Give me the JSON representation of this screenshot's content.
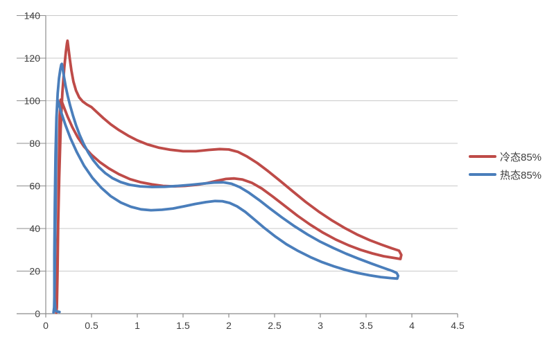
{
  "chart_data": {
    "type": "line",
    "title": "",
    "xlabel": "",
    "ylabel": "",
    "grid": "horizontal",
    "legend_position": "right",
    "x_axis": {
      "min": 0,
      "max": 4.5,
      "tick_step": 0.5,
      "tick_labels": [
        "0",
        "0.5",
        "1",
        "1.5",
        "2",
        "2.5",
        "3",
        "3.5",
        "4",
        "4.5"
      ]
    },
    "y_axis": {
      "min": 0,
      "max": 140,
      "tick_step": 20,
      "tick_labels": [
        "0",
        "20",
        "40",
        "60",
        "80",
        "100",
        "120",
        "140"
      ]
    },
    "style": {
      "background": "#FFFFFF",
      "gridline_color": "#C9C9C9",
      "axis_color": "#8C8C8C",
      "tick_color": "#8C8C8C",
      "text_color": "#3F3F3F",
      "line_width": 3.8
    },
    "series": [
      {
        "id": "cold-85",
        "name": "冷态85%",
        "color": "#BE4B48",
        "shape": "closed-loop",
        "peak": [
          0.24,
          128
        ],
        "points": [
          [
            0.115,
            0.5
          ],
          [
            0.122,
            12
          ],
          [
            0.133,
            38
          ],
          [
            0.147,
            64
          ],
          [
            0.163,
            87
          ],
          [
            0.182,
            104
          ],
          [
            0.202,
            115.5
          ],
          [
            0.22,
            123
          ],
          [
            0.232,
            127
          ],
          [
            0.238,
            128.2
          ],
          [
            0.248,
            124.8
          ],
          [
            0.262,
            119.8
          ],
          [
            0.28,
            114.2
          ],
          [
            0.302,
            109
          ],
          [
            0.33,
            104.8
          ],
          [
            0.365,
            101.6
          ],
          [
            0.405,
            99.6
          ],
          [
            0.45,
            98.2
          ],
          [
            0.5,
            97
          ],
          [
            0.56,
            94.6
          ],
          [
            0.63,
            91.8
          ],
          [
            0.71,
            88.9
          ],
          [
            0.8,
            86.2
          ],
          [
            0.9,
            83.6
          ],
          [
            1.0,
            81.4
          ],
          [
            1.11,
            79.5
          ],
          [
            1.23,
            78
          ],
          [
            1.36,
            77
          ],
          [
            1.5,
            76.3
          ],
          [
            1.64,
            76.3
          ],
          [
            1.78,
            76.9
          ],
          [
            1.9,
            77.3
          ],
          [
            2.0,
            77.1
          ],
          [
            2.1,
            76
          ],
          [
            2.2,
            73.8
          ],
          [
            2.31,
            70.8
          ],
          [
            2.43,
            66.9
          ],
          [
            2.56,
            62.4
          ],
          [
            2.7,
            57.4
          ],
          [
            2.84,
            52.5
          ],
          [
            2.98,
            48
          ],
          [
            3.12,
            44
          ],
          [
            3.26,
            40.4
          ],
          [
            3.4,
            37.2
          ],
          [
            3.54,
            34.5
          ],
          [
            3.67,
            32.4
          ],
          [
            3.78,
            30.7
          ],
          [
            3.86,
            29.6
          ],
          [
            3.885,
            27.6
          ],
          [
            3.875,
            25.7
          ],
          [
            3.8,
            26.2
          ],
          [
            3.69,
            27
          ],
          [
            3.57,
            28.3
          ],
          [
            3.44,
            30
          ],
          [
            3.31,
            32.1
          ],
          [
            3.17,
            34.8
          ],
          [
            3.03,
            38
          ],
          [
            2.89,
            41.8
          ],
          [
            2.75,
            46
          ],
          [
            2.61,
            50.7
          ],
          [
            2.48,
            55
          ],
          [
            2.36,
            58.8
          ],
          [
            2.25,
            61.5
          ],
          [
            2.15,
            63
          ],
          [
            2.06,
            63.5
          ],
          [
            1.97,
            63.3
          ],
          [
            1.87,
            62.4
          ],
          [
            1.76,
            61.3
          ],
          [
            1.64,
            60.5
          ],
          [
            1.52,
            60
          ],
          [
            1.4,
            59.8
          ],
          [
            1.28,
            60
          ],
          [
            1.16,
            60.7
          ],
          [
            1.04,
            61.7
          ],
          [
            0.92,
            63.2
          ],
          [
            0.8,
            65.5
          ],
          [
            0.69,
            68.2
          ],
          [
            0.59,
            71.2
          ],
          [
            0.5,
            74.6
          ],
          [
            0.42,
            78.4
          ],
          [
            0.35,
            82.8
          ],
          [
            0.29,
            87.6
          ],
          [
            0.24,
            92.4
          ],
          [
            0.2,
            96.8
          ],
          [
            0.175,
            99.6
          ],
          [
            0.163,
            100.5
          ],
          [
            0.152,
            93
          ],
          [
            0.144,
            72
          ],
          [
            0.136,
            45
          ],
          [
            0.128,
            18
          ],
          [
            0.121,
            3
          ],
          [
            0.115,
            0.5
          ]
        ]
      },
      {
        "id": "hot-85",
        "name": "热态85%",
        "color": "#4A7EBB",
        "shape": "closed-loop",
        "peak": [
          0.18,
          117
        ],
        "points": [
          [
            0.15,
            0.8
          ],
          [
            0.125,
            1
          ],
          [
            0.105,
            1.4
          ],
          [
            0.094,
            8
          ],
          [
            0.094,
            28
          ],
          [
            0.099,
            52
          ],
          [
            0.107,
            75
          ],
          [
            0.117,
            92
          ],
          [
            0.13,
            103.5
          ],
          [
            0.145,
            110.5
          ],
          [
            0.159,
            114.8
          ],
          [
            0.17,
            117
          ],
          [
            0.176,
            117.3
          ],
          [
            0.186,
            114.8
          ],
          [
            0.2,
            111
          ],
          [
            0.218,
            106.6
          ],
          [
            0.24,
            102.2
          ],
          [
            0.266,
            97.8
          ],
          [
            0.296,
            93.2
          ],
          [
            0.33,
            88.6
          ],
          [
            0.37,
            84
          ],
          [
            0.415,
            79.6
          ],
          [
            0.465,
            75.6
          ],
          [
            0.52,
            72
          ],
          [
            0.58,
            68.8
          ],
          [
            0.65,
            66
          ],
          [
            0.73,
            63.6
          ],
          [
            0.82,
            61.8
          ],
          [
            0.92,
            60.5
          ],
          [
            1.03,
            59.8
          ],
          [
            1.16,
            59.5
          ],
          [
            1.3,
            59.6
          ],
          [
            1.44,
            60
          ],
          [
            1.58,
            60.5
          ],
          [
            1.72,
            61.1
          ],
          [
            1.84,
            61.6
          ],
          [
            1.94,
            61.7
          ],
          [
            2.03,
            61
          ],
          [
            2.12,
            59.4
          ],
          [
            2.22,
            56.8
          ],
          [
            2.33,
            53.4
          ],
          [
            2.45,
            49.4
          ],
          [
            2.58,
            45.2
          ],
          [
            2.72,
            41
          ],
          [
            2.86,
            37.2
          ],
          [
            3.0,
            33.8
          ],
          [
            3.14,
            30.9
          ],
          [
            3.28,
            28.2
          ],
          [
            3.42,
            25.8
          ],
          [
            3.56,
            23.5
          ],
          [
            3.69,
            21.5
          ],
          [
            3.79,
            20
          ],
          [
            3.835,
            19.1
          ],
          [
            3.85,
            17.8
          ],
          [
            3.84,
            16.5
          ],
          [
            3.77,
            16.7
          ],
          [
            3.66,
            17.2
          ],
          [
            3.54,
            18
          ],
          [
            3.41,
            19.1
          ],
          [
            3.28,
            20.5
          ],
          [
            3.15,
            22.2
          ],
          [
            3.02,
            24.2
          ],
          [
            2.89,
            26.6
          ],
          [
            2.76,
            29.4
          ],
          [
            2.63,
            32.6
          ],
          [
            2.51,
            36.2
          ],
          [
            2.39,
            40.2
          ],
          [
            2.28,
            44.2
          ],
          [
            2.18,
            47.8
          ],
          [
            2.09,
            50.4
          ],
          [
            2.01,
            52
          ],
          [
            1.93,
            52.8
          ],
          [
            1.85,
            52.9
          ],
          [
            1.75,
            52.4
          ],
          [
            1.63,
            51.5
          ],
          [
            1.51,
            50.4
          ],
          [
            1.39,
            49.4
          ],
          [
            1.27,
            48.8
          ],
          [
            1.15,
            48.6
          ],
          [
            1.04,
            49
          ],
          [
            0.93,
            50.2
          ],
          [
            0.82,
            52.2
          ],
          [
            0.71,
            55.2
          ],
          [
            0.61,
            59
          ],
          [
            0.51,
            63.8
          ],
          [
            0.42,
            69.4
          ],
          [
            0.34,
            75.8
          ],
          [
            0.27,
            82.4
          ],
          [
            0.215,
            88.6
          ],
          [
            0.17,
            94.4
          ],
          [
            0.142,
            98.8
          ],
          [
            0.128,
            100.6
          ],
          [
            0.12,
            94
          ],
          [
            0.113,
            72
          ],
          [
            0.106,
            45
          ],
          [
            0.098,
            16
          ],
          [
            0.092,
            3
          ],
          [
            0.085,
            0.6
          ]
        ]
      }
    ]
  }
}
